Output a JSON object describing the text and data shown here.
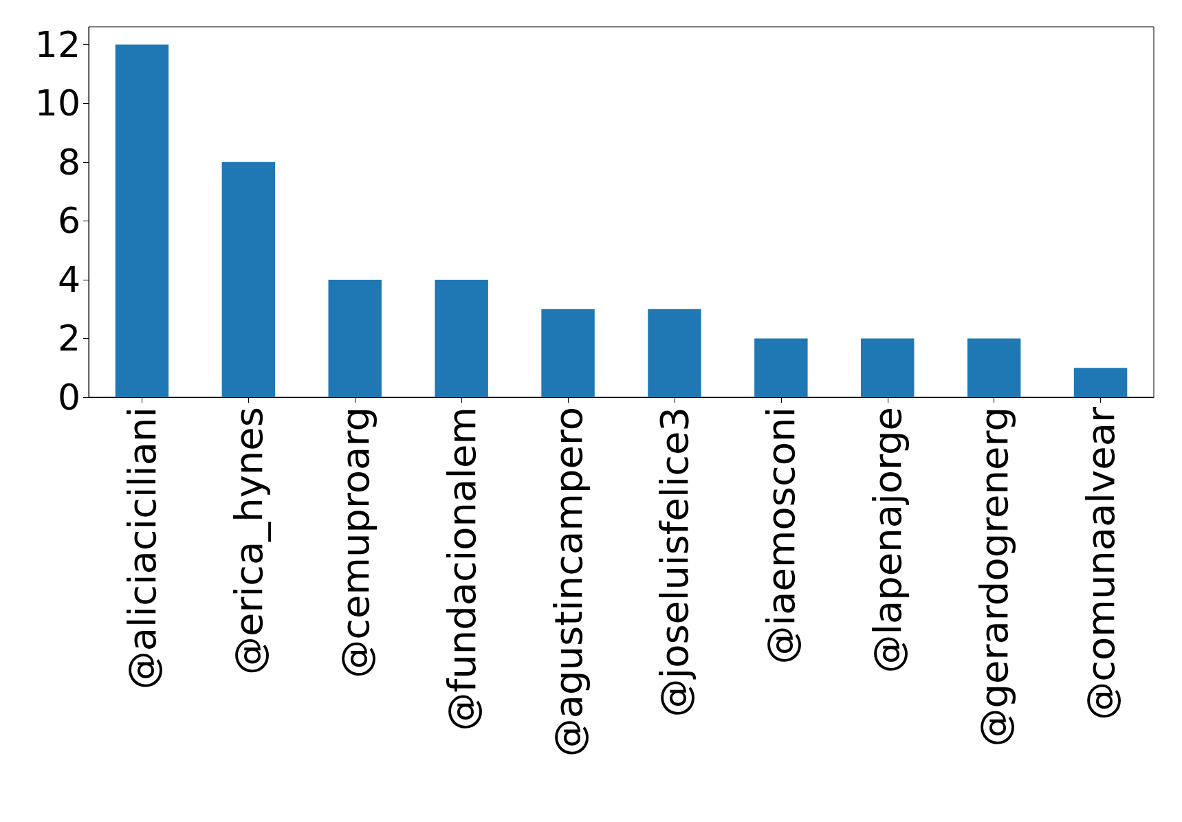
{
  "chart_data": {
    "type": "bar",
    "categories": [
      "@aliciaciciliani",
      "@erica_hynes",
      "@cemuproarg",
      "@fundacionalem",
      "@agustincampero",
      "@joseluisfelice3",
      "@iaemosconi",
      "@lapenajorge",
      "@gerardogrenerg",
      "@comunaalvear"
    ],
    "values": [
      12,
      8,
      4,
      4,
      3,
      3,
      2,
      2,
      2,
      1
    ],
    "color": "#1f77b4",
    "ylim": [
      0,
      12.6
    ],
    "yticks": [
      0,
      2,
      4,
      6,
      8,
      10,
      12
    ],
    "grid": false
  }
}
